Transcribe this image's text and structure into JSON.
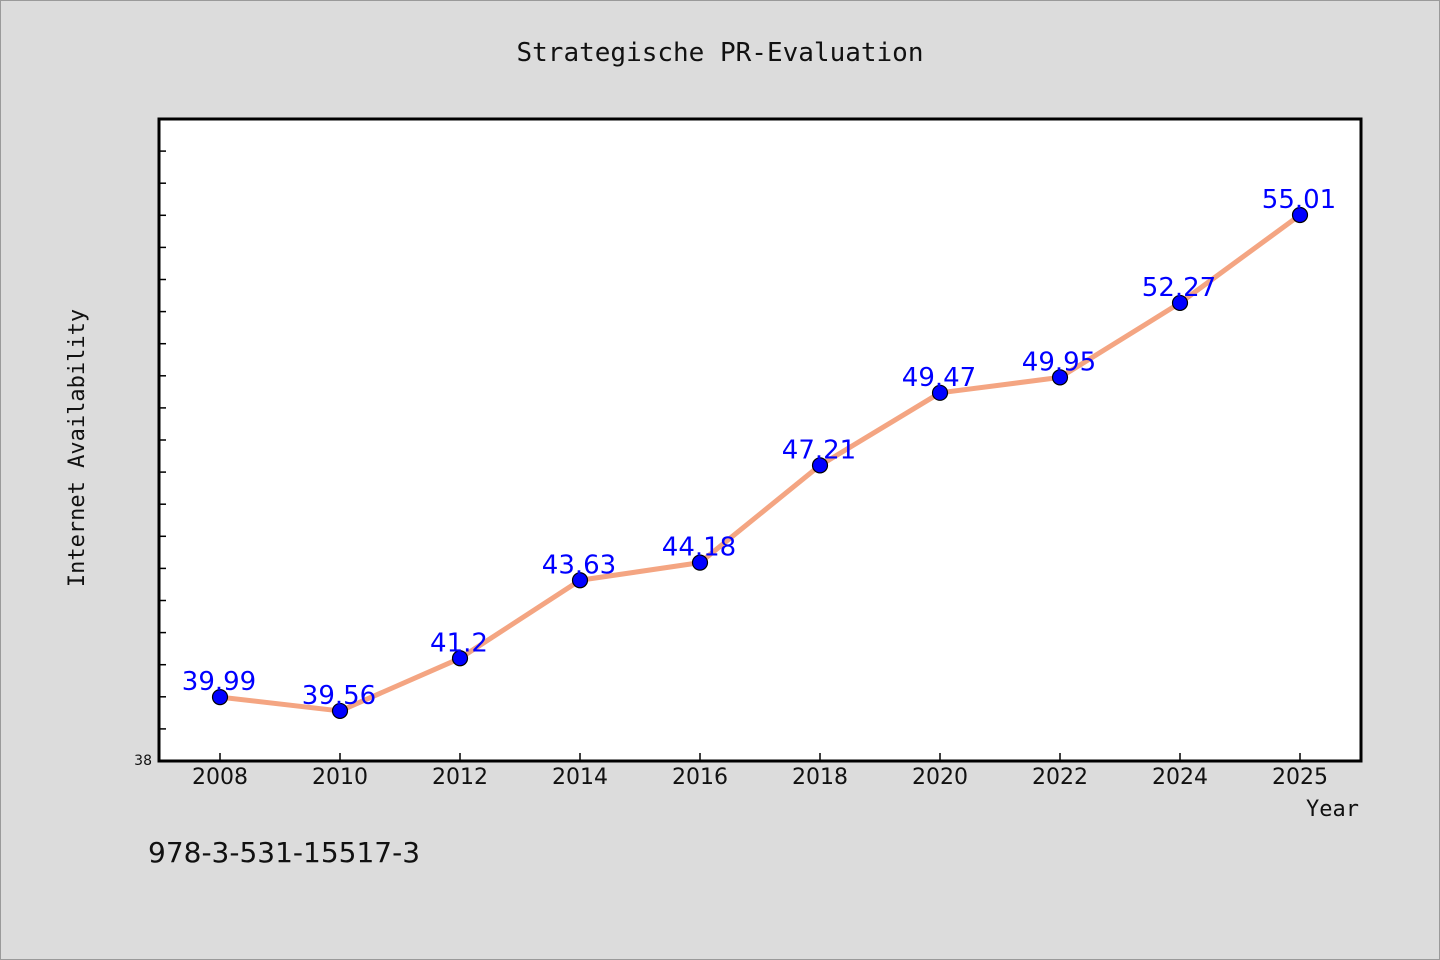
{
  "chart_data": {
    "type": "line",
    "title": "Strategische PR-Evaluation",
    "xlabel": "Year",
    "ylabel": "Internet Availability",
    "x": [
      "2008",
      "2010",
      "2012",
      "2014",
      "2016",
      "2018",
      "2020",
      "2022",
      "2024",
      "2025"
    ],
    "series": [
      {
        "values": [
          39.99,
          39.56,
          41.2,
          43.63,
          44.18,
          47.21,
          49.47,
          49.95,
          52.27,
          55.01
        ],
        "line_color": "#f4a582",
        "marker_color": "#0000ff"
      }
    ],
    "data_labels": [
      "39.99",
      "39.56",
      "41.2",
      "43.63",
      "44.18",
      "47.21",
      "49.47",
      "49.95",
      "52.27",
      "55.01"
    ],
    "ylim": [
      38,
      58
    ],
    "ytick_labels": [
      "38"
    ],
    "grid": false,
    "legend": "none"
  },
  "footer": {
    "isbn": "978-3-531-15517-3"
  }
}
